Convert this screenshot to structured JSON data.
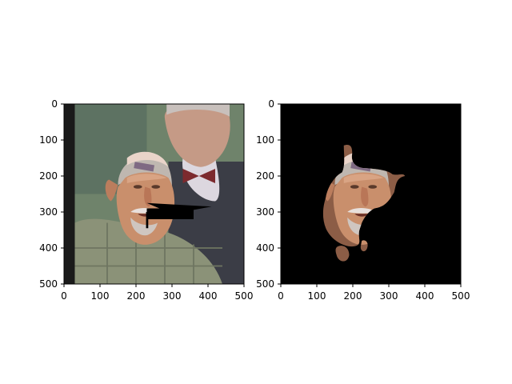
{
  "figure": {
    "panels": [
      {
        "name": "left",
        "image_description_tag": "photo-original",
        "x_ticks": [
          "0",
          "100",
          "200",
          "300",
          "400",
          "500"
        ],
        "y_ticks": [
          "0",
          "100",
          "200",
          "300",
          "400",
          "500"
        ]
      },
      {
        "name": "right",
        "image_description_tag": "photo-masked",
        "x_ticks": [
          "0",
          "100",
          "200",
          "300",
          "400",
          "500"
        ],
        "y_ticks": [
          "0",
          "100",
          "200",
          "300",
          "400",
          "500"
        ]
      }
    ],
    "colors": {
      "background": "#ffffff",
      "axes_frame": "#000000",
      "mask_background": "#000000"
    }
  }
}
